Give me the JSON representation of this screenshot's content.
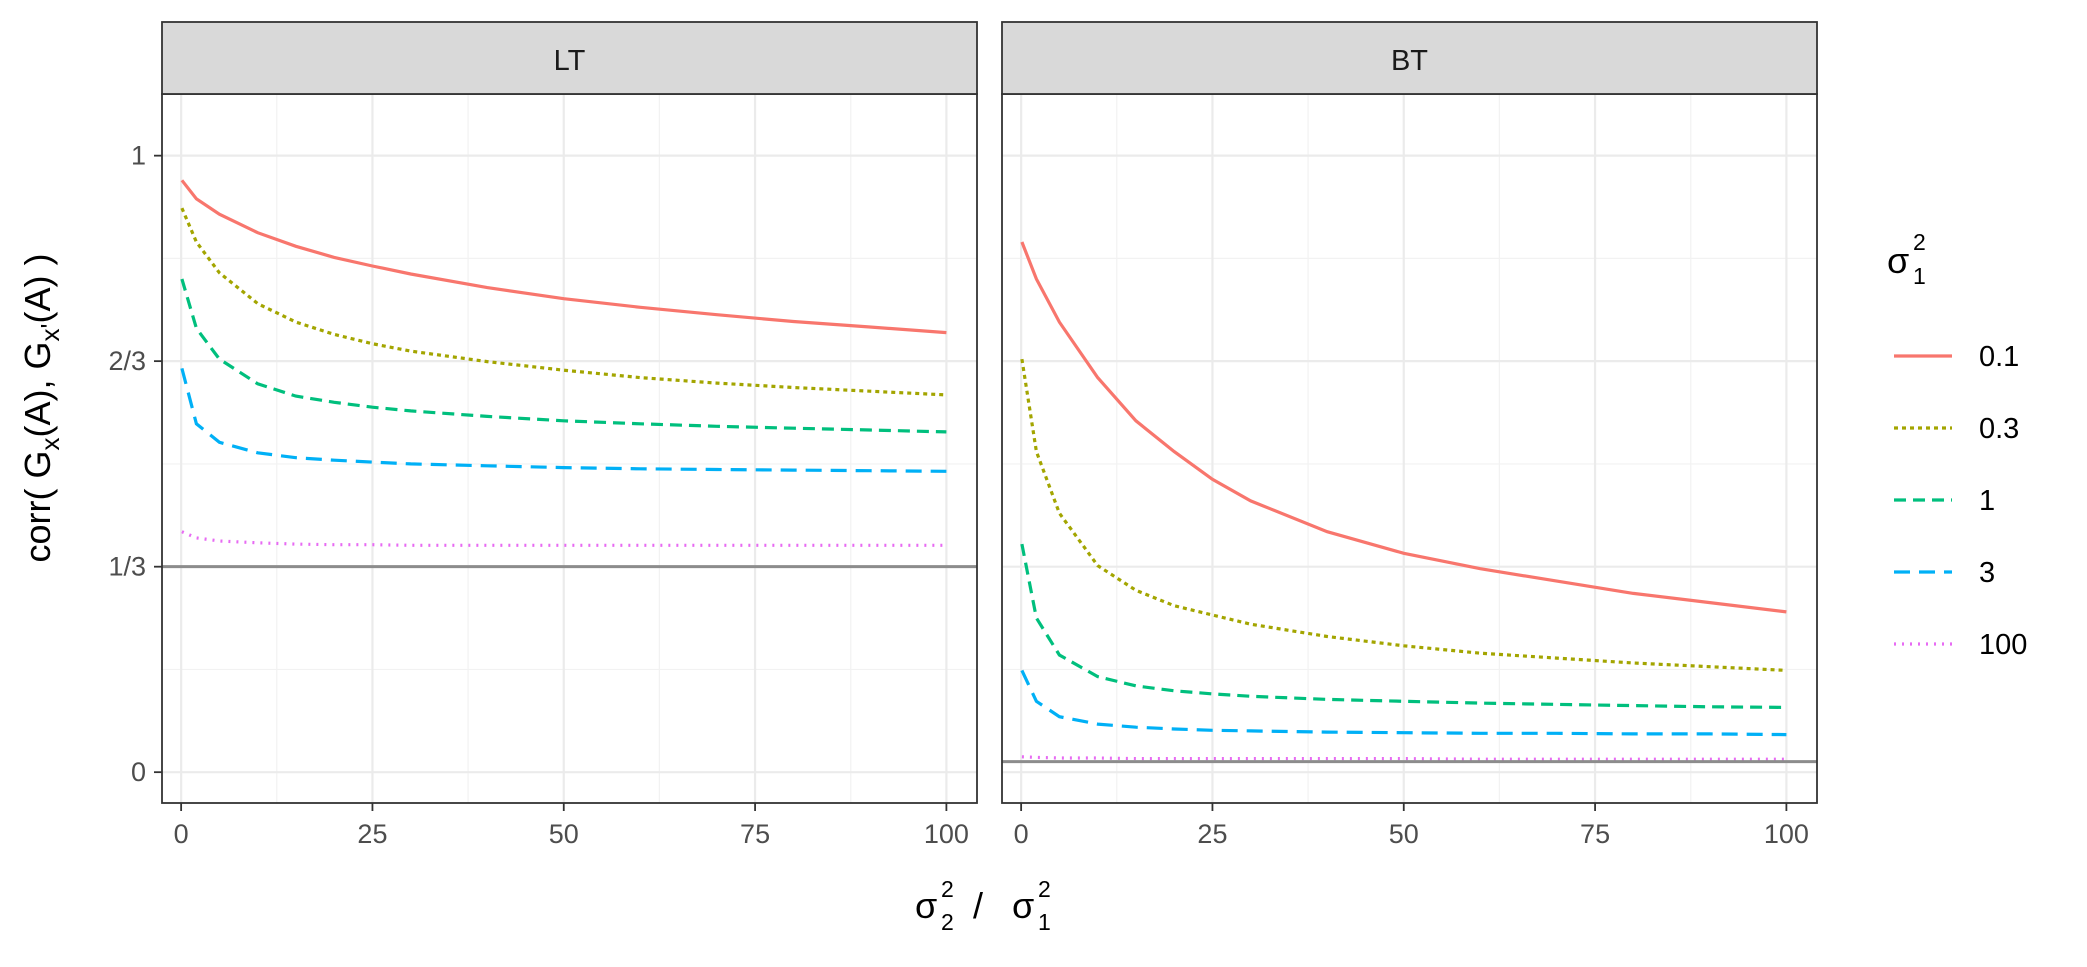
{
  "chart_data": {
    "type": "line",
    "facets": [
      "LT",
      "BT"
    ],
    "x_ticks": [
      0,
      25,
      50,
      75,
      100
    ],
    "x_tick_labels": [
      "0",
      "25",
      "50",
      "75",
      "100"
    ],
    "xlim": [
      -2.5,
      104
    ],
    "y_ticks": [
      0,
      0.3333,
      0.6667,
      1
    ],
    "y_tick_labels": [
      "0",
      "1/3",
      "2/3",
      "1"
    ],
    "ylim": [
      -0.05,
      1.1
    ],
    "xlabel": {
      "base1": "σ",
      "sup1": "2",
      "sub1": "2",
      "sep": " / ",
      "base2": "σ",
      "sup2": "2",
      "sub2": "1"
    },
    "ylabel": {
      "pre": "corr( G",
      "sub1": "x",
      "mid": "(A), G",
      "sub2": "x'",
      "post": "(A) )"
    },
    "legend": {
      "title_base": "σ",
      "title_sup": "2",
      "title_sub": "1",
      "position": "right"
    },
    "reference_lines": {
      "LT": 0.3333,
      "BT": 0.0172
    },
    "x": [
      0.1,
      2,
      5,
      10,
      15,
      20,
      25,
      30,
      40,
      50,
      60,
      70,
      80,
      90,
      100
    ],
    "series": [
      {
        "name": "0.1",
        "color": "#F8766D",
        "dash": "",
        "LT": [
          0.96,
          0.93,
          0.905,
          0.875,
          0.853,
          0.835,
          0.821,
          0.808,
          0.786,
          0.768,
          0.754,
          0.742,
          0.731,
          0.722,
          0.713
        ],
        "BT": [
          0.86,
          0.8,
          0.73,
          0.64,
          0.57,
          0.52,
          0.475,
          0.44,
          0.39,
          0.355,
          0.33,
          0.31,
          0.29,
          0.275,
          0.26
        ]
      },
      {
        "name": "0.3",
        "color": "#A3A500",
        "dash": "4,4",
        "LT": [
          0.915,
          0.86,
          0.81,
          0.76,
          0.73,
          0.71,
          0.695,
          0.683,
          0.666,
          0.652,
          0.64,
          0.631,
          0.624,
          0.618,
          0.612
        ],
        "BT": [
          0.67,
          0.52,
          0.42,
          0.335,
          0.295,
          0.27,
          0.255,
          0.24,
          0.22,
          0.205,
          0.193,
          0.185,
          0.177,
          0.171,
          0.165
        ]
      },
      {
        "name": "1",
        "color": "#00BF7D",
        "dash": "12,7",
        "LT": [
          0.8,
          0.72,
          0.67,
          0.63,
          0.61,
          0.6,
          0.592,
          0.586,
          0.577,
          0.57,
          0.565,
          0.561,
          0.558,
          0.555,
          0.552
        ],
        "BT": [
          0.37,
          0.25,
          0.19,
          0.155,
          0.14,
          0.132,
          0.127,
          0.123,
          0.118,
          0.115,
          0.112,
          0.11,
          0.108,
          0.106,
          0.105
        ]
      },
      {
        "name": "3",
        "color": "#00B0F6",
        "dash": "16,9",
        "LT": [
          0.655,
          0.565,
          0.535,
          0.518,
          0.51,
          0.506,
          0.503,
          0.5,
          0.497,
          0.494,
          0.492,
          0.491,
          0.49,
          0.489,
          0.488
        ],
        "BT": [
          0.165,
          0.115,
          0.09,
          0.078,
          0.073,
          0.07,
          0.068,
          0.067,
          0.065,
          0.064,
          0.063,
          0.063,
          0.062,
          0.062,
          0.061
        ]
      },
      {
        "name": "100",
        "color": "#E76BF3",
        "dash": "2,6",
        "LT": [
          0.39,
          0.38,
          0.375,
          0.372,
          0.37,
          0.369,
          0.369,
          0.368,
          0.368,
          0.368,
          0.368,
          0.368,
          0.368,
          0.368,
          0.368
        ],
        "BT": [
          0.025,
          0.024,
          0.023,
          0.023,
          0.022,
          0.022,
          0.022,
          0.022,
          0.022,
          0.022,
          0.021,
          0.021,
          0.021,
          0.021,
          0.021
        ]
      }
    ]
  }
}
